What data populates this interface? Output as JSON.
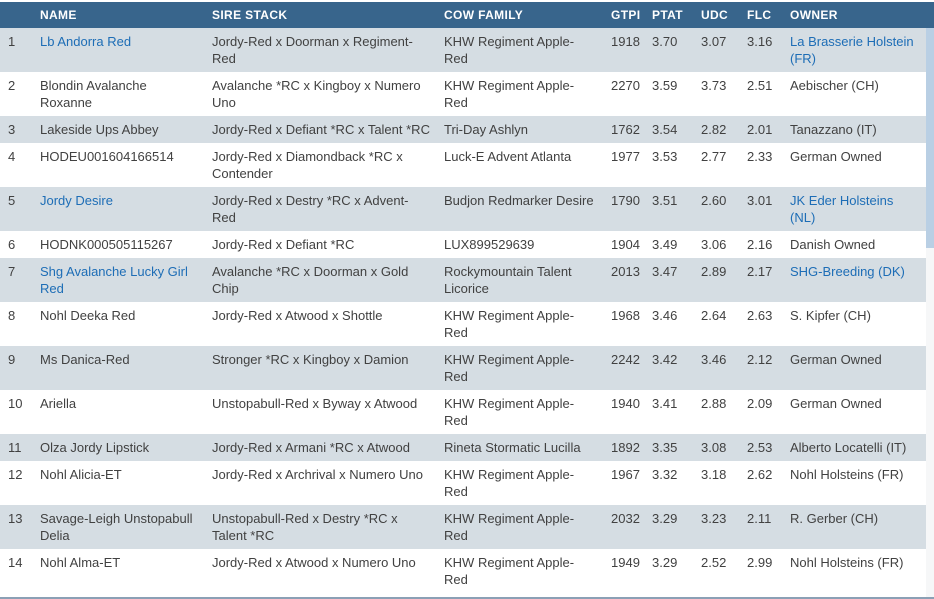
{
  "colors": {
    "header_bg": "#38658c",
    "header_text": "#ffffff",
    "stripe_bg": "#d5dde3",
    "row_bg": "#ffffff",
    "body_text": "#414141",
    "link": "#1d6db6",
    "right_strip": "#b9cfe4",
    "bottom_line": "#8ba0b5"
  },
  "table": {
    "columns": [
      {
        "label": ""
      },
      {
        "label": "NAME"
      },
      {
        "label": "SIRE STACK"
      },
      {
        "label": "COW FAMILY"
      },
      {
        "label": "GTPI"
      },
      {
        "label": "PTAT"
      },
      {
        "label": "UDC"
      },
      {
        "label": "FLC"
      },
      {
        "label": "OWNER"
      }
    ],
    "rows": [
      {
        "rank": "1",
        "name": "Lb Andorra Red",
        "name_link": true,
        "sire": "Jordy-Red x Doorman x Regiment-Red",
        "cow": "KHW Regiment Apple-Red",
        "gtpi": "1918",
        "ptat": "3.70",
        "udc": "3.07",
        "flc": "3.16",
        "owner": "La Brasserie Holstein (FR)",
        "owner_link": true
      },
      {
        "rank": "2",
        "name": "Blondin Avalanche Roxanne",
        "name_link": false,
        "sire": "Avalanche *RC x Kingboy x Numero Uno",
        "cow": "KHW Regiment Apple-Red",
        "gtpi": "2270",
        "ptat": "3.59",
        "udc": "3.73",
        "flc": "2.51",
        "owner": "Aebischer (CH)",
        "owner_link": false
      },
      {
        "rank": "3",
        "name": "Lakeside Ups Abbey",
        "name_link": false,
        "sire": "Jordy-Red x Defiant *RC x Talent *RC",
        "cow": "Tri-Day Ashlyn",
        "gtpi": "1762",
        "ptat": "3.54",
        "udc": "2.82",
        "flc": "2.01",
        "owner": "Tanazzano (IT)",
        "owner_link": false
      },
      {
        "rank": "4",
        "name": "HODEU001604166514",
        "name_link": false,
        "sire": "Jordy-Red x Diamondback *RC x Contender",
        "cow": "Luck-E Advent Atlanta",
        "gtpi": "1977",
        "ptat": "3.53",
        "udc": "2.77",
        "flc": "2.33",
        "owner": "German Owned",
        "owner_link": false
      },
      {
        "rank": "5",
        "name": "Jordy Desire",
        "name_link": true,
        "sire": "Jordy-Red x Destry *RC x Advent-Red",
        "cow": "Budjon Redmarker Desire",
        "gtpi": "1790",
        "ptat": "3.51",
        "udc": "2.60",
        "flc": "3.01",
        "owner": "JK Eder Holsteins (NL)",
        "owner_link": true
      },
      {
        "rank": "6",
        "name": "HODNK000505115267",
        "name_link": false,
        "sire": "Jordy-Red x Defiant *RC",
        "cow": "LUX899529639",
        "gtpi": "1904",
        "ptat": "3.49",
        "udc": "3.06",
        "flc": "2.16",
        "owner": "Danish Owned",
        "owner_link": false
      },
      {
        "rank": "7",
        "name": "Shg Avalanche Lucky Girl Red",
        "name_link": true,
        "sire": "Avalanche *RC x Doorman x Gold Chip",
        "cow": "Rockymountain Talent Licorice",
        "gtpi": "2013",
        "ptat": "3.47",
        "udc": "2.89",
        "flc": "2.17",
        "owner": "SHG-Breeding (DK)",
        "owner_link": true
      },
      {
        "rank": "8",
        "name": "Nohl Deeka Red",
        "name_link": false,
        "sire": "Jordy-Red x Atwood x Shottle",
        "cow": "KHW Regiment Apple-Red",
        "gtpi": "1968",
        "ptat": "3.46",
        "udc": "2.64",
        "flc": "2.63",
        "owner": "S. Kipfer (CH)",
        "owner_link": false
      },
      {
        "rank": "9",
        "name": "Ms Danica-Red",
        "name_link": false,
        "sire": "Stronger *RC x Kingboy x Damion",
        "cow": "KHW Regiment Apple-Red",
        "gtpi": "2242",
        "ptat": "3.42",
        "udc": "3.46",
        "flc": "2.12",
        "owner": "German Owned",
        "owner_link": false
      },
      {
        "rank": "10",
        "name": "Ariella",
        "name_link": false,
        "sire": "Unstopabull-Red x Byway x Atwood",
        "cow": "KHW Regiment Apple-Red",
        "gtpi": "1940",
        "ptat": "3.41",
        "udc": "2.88",
        "flc": "2.09",
        "owner": "German Owned",
        "owner_link": false
      },
      {
        "rank": "11",
        "name": "Olza Jordy Lipstick",
        "name_link": false,
        "sire": "Jordy-Red x Armani *RC x Atwood",
        "cow": "Rineta Stormatic Lucilla",
        "gtpi": "1892",
        "ptat": "3.35",
        "udc": "3.08",
        "flc": "2.53",
        "owner": "Alberto Locatelli (IT)",
        "owner_link": false
      },
      {
        "rank": "12",
        "name": "Nohl Alicia-ET",
        "name_link": false,
        "sire": "Jordy-Red x Archrival x Numero Uno",
        "cow": "KHW Regiment Apple-Red",
        "gtpi": "1967",
        "ptat": "3.32",
        "udc": "3.18",
        "flc": "2.62",
        "owner": "Nohl Holsteins (FR)",
        "owner_link": false
      },
      {
        "rank": "13",
        "name": "Savage-Leigh Unstopabull Delia",
        "name_link": false,
        "sire": "Unstopabull-Red x Destry *RC x Talent *RC",
        "cow": "KHW Regiment Apple-Red",
        "gtpi": "2032",
        "ptat": "3.29",
        "udc": "3.23",
        "flc": "2.11",
        "owner": "R. Gerber (CH)",
        "owner_link": false
      },
      {
        "rank": "14",
        "name": "Nohl Alma-ET",
        "name_link": false,
        "sire": "Jordy-Red x Atwood x Numero Uno",
        "cow": "KHW Regiment Apple-Red",
        "gtpi": "1949",
        "ptat": "3.29",
        "udc": "2.52",
        "flc": "2.99",
        "owner": "Nohl Holsteins (FR)",
        "owner_link": false
      }
    ]
  }
}
